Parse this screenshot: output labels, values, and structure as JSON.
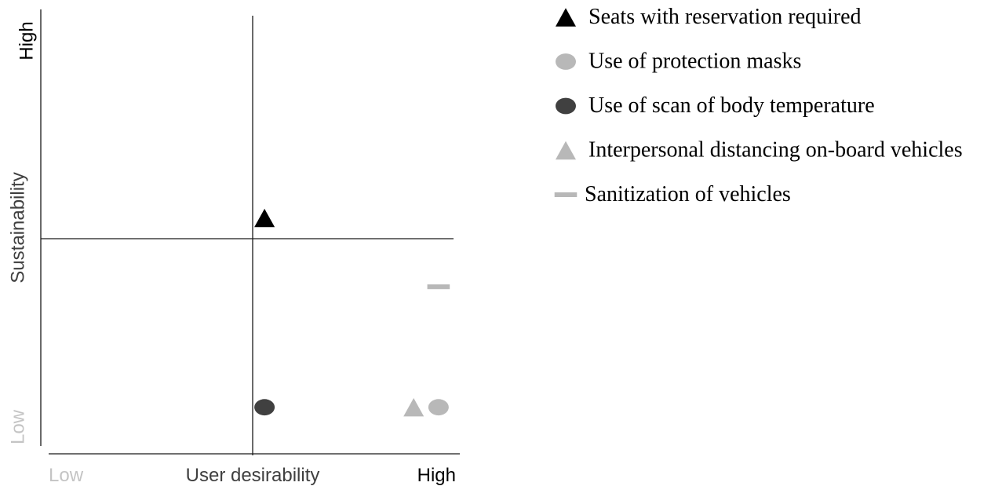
{
  "chart_data": {
    "type": "scatter",
    "title": "",
    "xlabel": "User desirability",
    "ylabel": "Sustainability",
    "x_ticks": {
      "low": "Low",
      "high": "High"
    },
    "y_ticks": {
      "low": "Low",
      "high": "High"
    },
    "xlim": [
      0,
      1
    ],
    "ylim": [
      0,
      1
    ],
    "dividers": {
      "x": 0.5,
      "y": 0.5
    },
    "legend_position": "right",
    "series": [
      {
        "name": "Seats with reservation required",
        "marker": "triangle",
        "color": "#000000",
        "points": [
          {
            "x": 0.54,
            "y": 0.53
          }
        ]
      },
      {
        "name": "Use of protection masks",
        "marker": "circle",
        "color": "#b8b8b8",
        "points": [
          {
            "x": 0.96,
            "y": 0.09
          }
        ]
      },
      {
        "name": "Use of scan of body temperature",
        "marker": "circle",
        "color": "#404040",
        "points": [
          {
            "x": 0.54,
            "y": 0.09
          }
        ]
      },
      {
        "name": "Interpersonal distancing on-board vehicles",
        "marker": "triangle",
        "color": "#b8b8b8",
        "points": [
          {
            "x": 0.9,
            "y": 0.09
          }
        ]
      },
      {
        "name": "Sanitization of vehicles",
        "marker": "dash",
        "color": "#b8b8b8",
        "points": [
          {
            "x": 0.96,
            "y": 0.37
          }
        ]
      }
    ]
  },
  "colors": {
    "axis": "#1a1a1a",
    "label_dark": "#404040",
    "label_light": "#c4c4c4",
    "tick_high": "#000000"
  }
}
